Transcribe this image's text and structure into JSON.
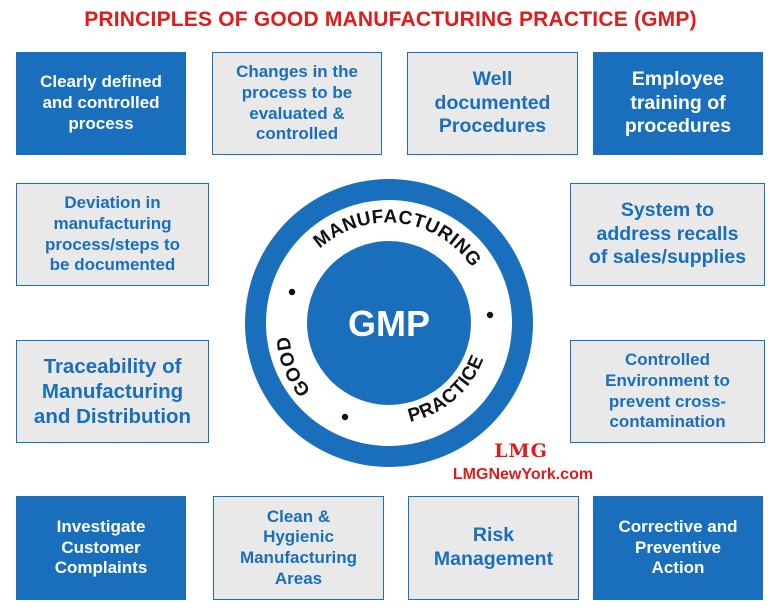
{
  "title": "PRINCIPLES OF GOOD MANUFACTURING PRACTICE (GMP)",
  "colors": {
    "title_red": "#e01b1b",
    "brand_blue": "#1a6fbd",
    "box_gray": "#e9e9e9"
  },
  "boxes": {
    "clearly_defined": "Clearly defined\nand controlled\nprocess",
    "changes_evaluated": "Changes in the\nprocess to be\nevaluated &\ncontrolled",
    "well_documented": "Well\ndocumented\nProcedures",
    "employee_training": "Employee\ntraining of\nprocedures",
    "deviation": "Deviation in\nmanufacturing\nprocess/steps to\nbe documented",
    "recalls": "System to\naddress recalls\nof sales/supplies",
    "traceability": "Traceability of\nManufacturing\nand Distribution",
    "controlled_env": "Controlled\nEnvironment to\nprevent cross-\ncontamination",
    "complaints": "Investigate\nCustomer\nComplaints",
    "clean_areas": "Clean &\nHygienic\nManufacturing\nAreas",
    "risk": "Risk\nManagement",
    "corrective": "Corrective and\nPreventive\nAction"
  },
  "wheel": {
    "center": "GMP",
    "arc_manufacturing": "MANUFACTURING",
    "arc_good": "GOOD",
    "arc_practice": "PRACTICE"
  },
  "logo": {
    "mark": "LMG",
    "site": "LMGNewYork.com"
  }
}
